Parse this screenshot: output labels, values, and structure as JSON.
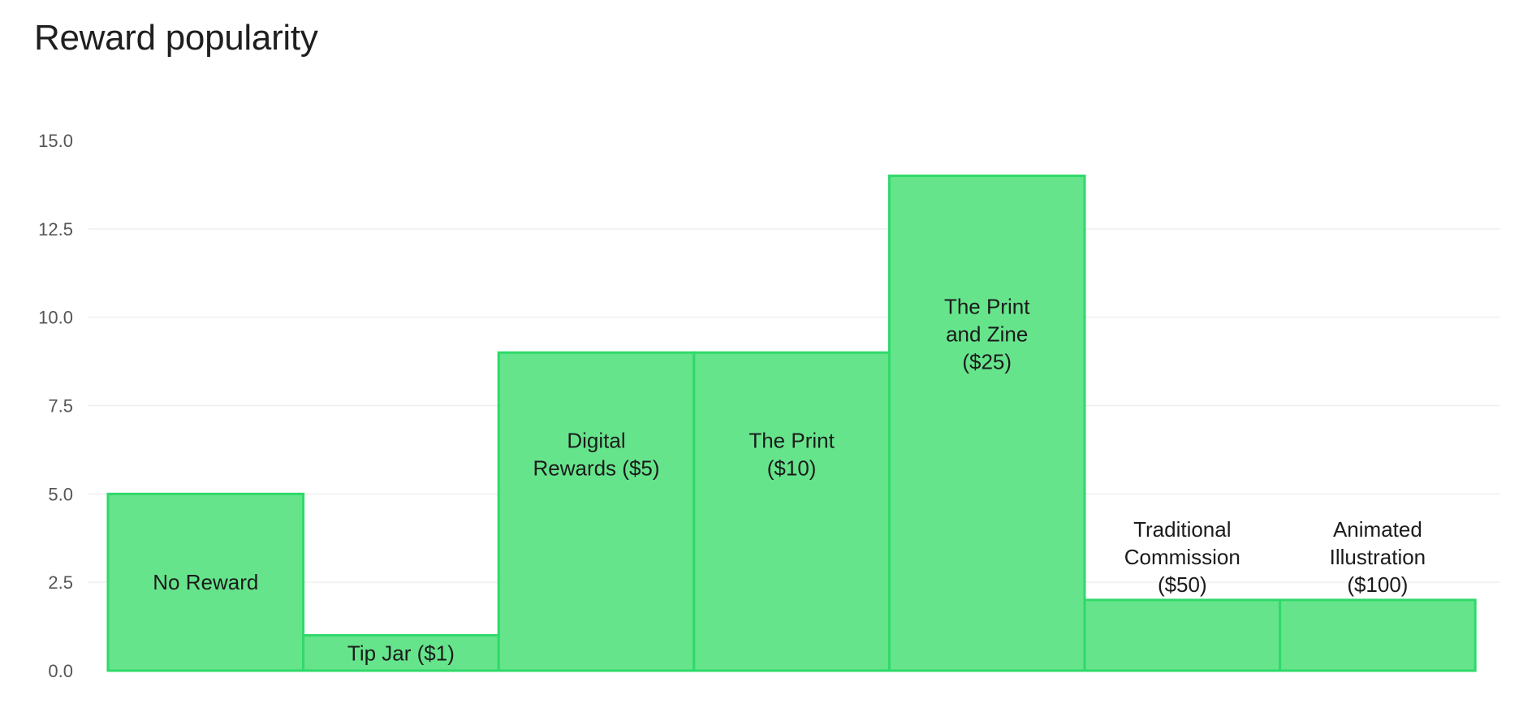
{
  "chart_data": {
    "type": "bar",
    "title": "Reward popularity",
    "xlabel": "",
    "ylabel": "",
    "ylim": [
      0,
      15
    ],
    "yticks": [
      "0.0",
      "2.5",
      "5.0",
      "7.5",
      "10.0",
      "12.5",
      "15.0"
    ],
    "grid": true,
    "legend": "none",
    "categories": [
      "No Reward",
      "Tip Jar ($1)",
      "Digital Rewards ($5)",
      "The Print ($10)",
      "The Print and Zine ($25)",
      "Traditional Commission ($50)",
      "Animated Illustration ($100)"
    ],
    "bar_label_lines": [
      [
        "No Reward"
      ],
      [
        "Tip Jar ($1)"
      ],
      [
        "Digital",
        "Rewards ($5)"
      ],
      [
        "The Print",
        "($10)"
      ],
      [
        "The Print",
        "and Zine",
        "($25)"
      ],
      [
        "Traditional",
        "Commission",
        "($50)"
      ],
      [
        "Animated",
        "Illustration",
        "($100)"
      ]
    ],
    "values": [
      5,
      1,
      9,
      9,
      14,
      2,
      2
    ],
    "colors": {
      "bar_fill": "#66e48c",
      "bar_stroke": "#2fd96a",
      "grid": "#efefef",
      "tick_text": "#555555",
      "label_text": "#1b1b1b"
    }
  }
}
